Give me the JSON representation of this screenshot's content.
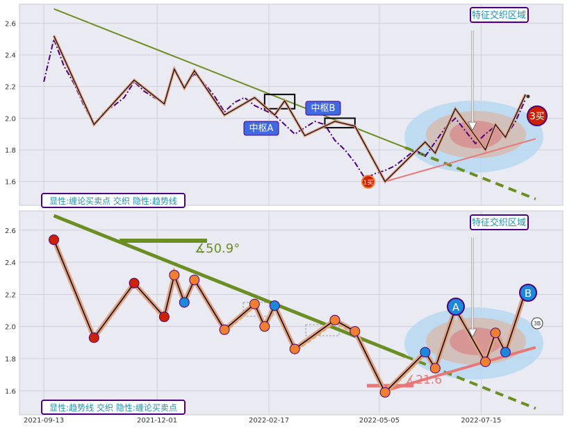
{
  "colors": {
    "panel_bg": "#eaeaf2",
    "grid": "#c8c8d4",
    "trendline": "#6b8e23",
    "price_line_top": "#4b0082",
    "price_line_bottom": "#e8b040",
    "stroke_outline": "#e2a080",
    "support_line": "#e87878",
    "ellipse_outer": "#b6d8f2",
    "ellipse_mid": "#d8b8a8",
    "ellipse_inner": "#d88080",
    "label_bg": "#4169e1",
    "label_border": "#4b0082",
    "label_text_cyan": "#1e90b0",
    "marker_red": "#cc2200",
    "marker_orange": "#f08030",
    "marker_blue": "#1e88d8"
  },
  "chart_data": [
    {
      "type": "line",
      "panel": "top",
      "ylim": [
        1.45,
        2.72
      ],
      "yticks": [
        1.6,
        1.8,
        2.0,
        2.2,
        2.4,
        2.6
      ],
      "ytick_labels": [
        "1.6",
        "1.8",
        "2.0",
        "2.2",
        "2.4",
        "2.6"
      ],
      "series": [
        {
          "values_x": [
            "2021-09-13",
            "2021-09-20",
            "2021-09-27",
            "2021-10-04",
            "2021-10-11",
            "2021-10-18",
            "2021-10-25",
            "2021-11-01",
            "2021-11-08",
            "2021-11-15",
            "2021-11-22",
            "2021-11-29",
            "2021-12-06",
            "2021-12-13",
            "2021-12-20",
            "2021-12-27",
            "2022-01-03",
            "2022-01-10",
            "2022-01-17",
            "2022-01-24",
            "2022-01-31",
            "2022-02-07",
            "2022-02-14",
            "2022-02-21",
            "2022-02-28",
            "2022-03-07",
            "2022-03-14",
            "2022-03-21",
            "2022-03-28",
            "2022-04-04",
            "2022-04-11",
            "2022-04-18",
            "2022-04-25",
            "2022-05-02",
            "2022-05-09",
            "2022-05-16",
            "2022-05-23",
            "2022-05-30",
            "2022-06-06",
            "2022-06-13",
            "2022-06-20",
            "2022-06-27",
            "2022-07-04",
            "2022-07-11",
            "2022-07-18",
            "2022-07-25",
            "2022-08-01",
            "2022-08-08",
            "2022-08-15"
          ],
          "values_y": [
            2.23,
            2.5,
            2.33,
            2.22,
            2.08,
            1.96,
            2.04,
            2.08,
            2.13,
            2.23,
            2.17,
            2.13,
            2.1,
            2.3,
            2.2,
            2.28,
            2.22,
            2.14,
            2.04,
            2.1,
            2.13,
            2.08,
            2.05,
            2.02,
            1.96,
            1.9,
            1.94,
            1.98,
            1.96,
            1.86,
            1.8,
            1.72,
            1.62,
            1.65,
            1.67,
            1.7,
            1.75,
            1.8,
            1.76,
            1.85,
            1.94,
            2.0,
            1.92,
            1.84,
            1.9,
            1.95,
            1.88,
            1.98,
            2.12
          ]
        }
      ],
      "stroke_points": [
        [
          "2021-09-20",
          2.52
        ],
        [
          "2021-10-18",
          1.96
        ],
        [
          "2021-11-15",
          2.24
        ],
        [
          "2021-12-06",
          2.09
        ],
        [
          "2021-12-13",
          2.31
        ],
        [
          "2021-12-20",
          2.19
        ],
        [
          "2021-12-27",
          2.3
        ],
        [
          "2022-01-17",
          2.02
        ],
        [
          "2022-02-07",
          2.13
        ],
        [
          "2022-02-21",
          2.02
        ],
        [
          "2022-02-28",
          2.11
        ],
        [
          "2022-03-14",
          1.89
        ],
        [
          "2022-04-04",
          1.98
        ],
        [
          "2022-04-18",
          1.95
        ],
        [
          "2022-05-09",
          1.6
        ],
        [
          "2022-06-06",
          1.85
        ],
        [
          "2022-06-13",
          1.78
        ],
        [
          "2022-06-27",
          2.06
        ],
        [
          "2022-07-18",
          1.8
        ],
        [
          "2022-07-25",
          1.96
        ],
        [
          "2022-08-01",
          1.88
        ],
        [
          "2022-08-15",
          2.15
        ]
      ],
      "trendline": [
        [
          "2021-09-20",
          2.69
        ],
        [
          "2022-08-22",
          1.49
        ]
      ],
      "support_line": [
        [
          "2022-05-09",
          1.6
        ],
        [
          "2022-08-22",
          1.87
        ]
      ],
      "pivot_boxes": [
        {
          "label": "中枢A",
          "x0": "2022-02-14",
          "x1": "2022-03-07",
          "y0": 2.06,
          "y1": 2.15
        },
        {
          "label": "中枢B",
          "x0": "2022-03-28",
          "x1": "2022-04-18",
          "y0": 1.94,
          "y1": 2.0
        }
      ],
      "annotations": {
        "zone_label": "特征交织区域",
        "buy_point_3": "3买",
        "buy_point_1": "1买",
        "legend_label": "显性:缠论买卖点 交织 隐性:趋势线"
      }
    },
    {
      "type": "line",
      "panel": "bottom",
      "ylim": [
        1.45,
        2.72
      ],
      "yticks": [
        1.6,
        1.8,
        2.0,
        2.2,
        2.4,
        2.6
      ],
      "ytick_labels": [
        "1.6",
        "1.8",
        "2.0",
        "2.2",
        "2.4",
        "2.6"
      ],
      "xticks": [
        "2021-09-13",
        "2021-12-01",
        "2022-02-17",
        "2022-05-05",
        "2022-07-15"
      ],
      "trendline": [
        [
          "2021-09-20",
          2.69
        ],
        [
          "2022-08-22",
          1.49
        ]
      ],
      "trend_angle_label": "∡50.9°",
      "support_line": [
        [
          "2022-05-09",
          1.6
        ],
        [
          "2022-08-22",
          1.87
        ]
      ],
      "support_angle_label": "∡21.6",
      "stroke_points": [
        [
          "2021-09-20",
          2.54
        ],
        [
          "2021-10-18",
          1.93
        ],
        [
          "2021-11-15",
          2.27
        ],
        [
          "2021-12-06",
          2.06
        ],
        [
          "2021-12-13",
          2.32
        ],
        [
          "2021-12-20",
          2.15
        ],
        [
          "2021-12-27",
          2.29
        ],
        [
          "2022-01-17",
          1.98
        ],
        [
          "2022-02-07",
          2.14
        ],
        [
          "2022-02-14",
          2.0
        ],
        [
          "2022-02-21",
          2.13
        ],
        [
          "2022-03-07",
          1.86
        ],
        [
          "2022-04-04",
          2.04
        ],
        [
          "2022-04-18",
          1.97
        ],
        [
          "2022-05-09",
          1.59
        ],
        [
          "2022-06-06",
          1.84
        ],
        [
          "2022-06-13",
          1.74
        ],
        [
          "2022-06-27",
          2.11
        ],
        [
          "2022-07-18",
          1.78
        ],
        [
          "2022-07-25",
          1.96
        ],
        [
          "2022-08-01",
          1.84
        ],
        [
          "2022-08-15",
          2.22
        ]
      ],
      "letter_markers": [
        {
          "label": "A",
          "x": "2022-06-27",
          "y": 2.11
        },
        {
          "label": "B",
          "x": "2022-08-15",
          "y": 2.21
        }
      ],
      "annotations": {
        "zone_label": "特征交织区域",
        "marker_3b": "3B",
        "legend_label": "显性:趋势线 交织 隐性:缠论买卖点"
      }
    }
  ]
}
